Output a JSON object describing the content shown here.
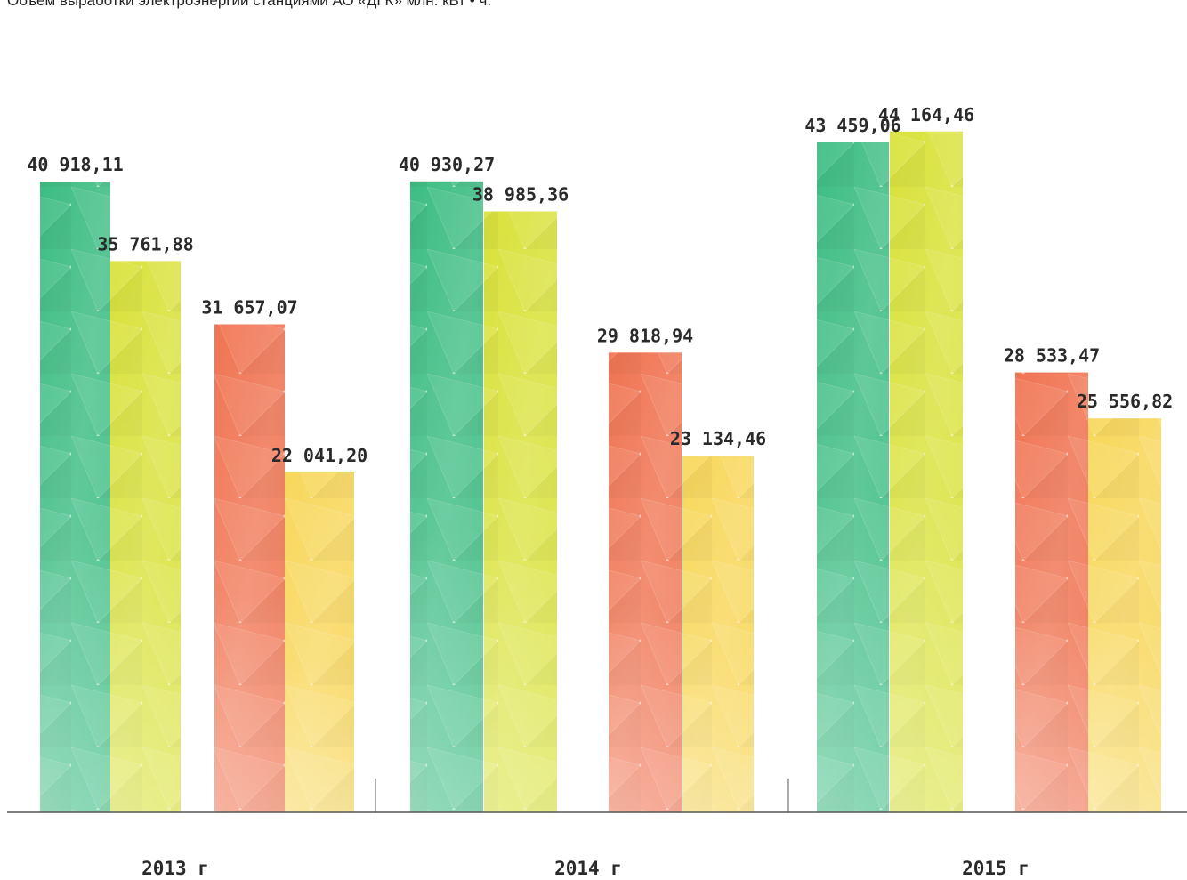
{
  "title": "Объем выработки электроэнергии станциями АО «ДГК» млн. кВт • ч.",
  "colors": {
    "green": "#3dbd83",
    "lime": "#d9e23a",
    "red": "#f07452",
    "yellow": "#f8d75a",
    "axis": "#555555",
    "text": "#2a2a2a"
  },
  "chart_data": {
    "type": "bar",
    "title": "Объем выработки электроэнергии станциями АО «ДГК» млн. кВт • ч.",
    "categories": [
      "2013 г",
      "2014 г",
      "2015 г"
    ],
    "series": [
      {
        "values": [
          40918.11,
          40930.27,
          43459.06
        ],
        "labels": [
          "40 918,11",
          "40 930,27",
          "43 459,06"
        ],
        "color": "#3dbd83"
      },
      {
        "values": [
          35761.88,
          38985.36,
          44164.46
        ],
        "labels": [
          "35 761,88",
          "38 985,36",
          "44 164,46"
        ],
        "color": "#d9e23a"
      },
      {
        "values": [
          31657.07,
          29818.94,
          28533.47
        ],
        "labels": [
          "31 657,07",
          "29 818,94",
          "28 533,47"
        ],
        "color": "#f07452"
      },
      {
        "values": [
          22041.2,
          23134.46,
          25556.82
        ],
        "labels": [
          "22 041,20",
          "23 134,46",
          "25 556,82"
        ],
        "color": "#f8d75a"
      }
    ],
    "xlabel": "",
    "ylabel": "",
    "ylim": [
      0,
      52000
    ],
    "grid": false,
    "legend": "none"
  }
}
